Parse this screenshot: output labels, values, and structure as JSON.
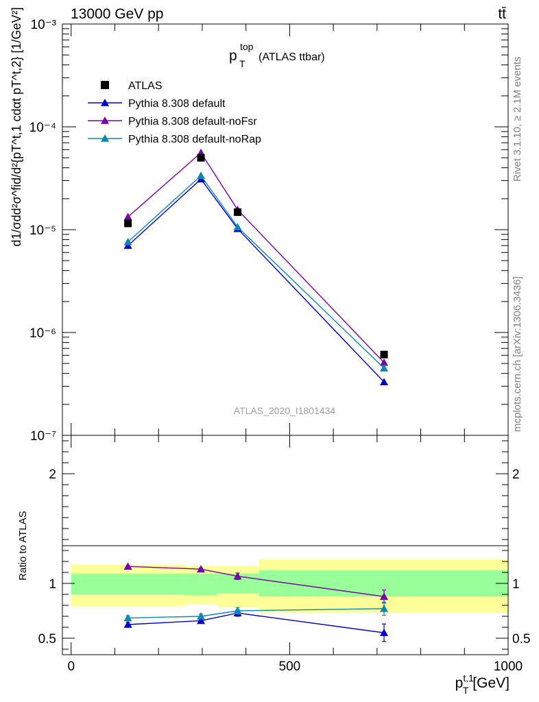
{
  "header": {
    "energy_label": "13000 GeV pp",
    "process_label": "tt̄"
  },
  "side_labels": {
    "rivet": "Rivet 3.1.10, ≥ 2.1M events",
    "mcplots": "mcplots.cern.ch [arXiv:1306.3436]"
  },
  "colors": {
    "data": "#000000",
    "default": "#0000cc",
    "noFsr": "#7a00a8",
    "noRap": "#0a88b0",
    "band_outer": "#ffff99",
    "band_inner": "#99ff99"
  },
  "chart_data": [
    {
      "type": "line",
      "title_main": "p",
      "title_sup": "top",
      "title_sub": "T",
      "title_suffix": "(ATLAS ttbar)",
      "analysis_label": "ATLAS_2020_I1801434",
      "ylabel": "d1/σdd²σ^fid/d²{pT^t,1 cdαt pT^t,2} [1/GeV²]",
      "yscale": "log",
      "ylim": [
        1e-07,
        0.001
      ],
      "xlim": [
        -20,
        1000
      ],
      "ytick_labels": [
        "10⁻³",
        "10⁻⁴",
        "10⁻⁵",
        "10⁻⁶",
        "10⁻⁷"
      ],
      "legend_position": "top-left",
      "data_series": {
        "name": "ATLAS",
        "x": [
          130,
          297,
          381,
          716
        ],
        "y": [
          1.15e-05,
          5e-05,
          1.48e-05,
          6.1e-07
        ]
      },
      "series": [
        {
          "name": "Pythia 8.308 default",
          "color_key": "default",
          "x": [
            130,
            297,
            381,
            716
          ],
          "y": [
            7e-06,
            3.1e-05,
            1.02e-05,
            3.3e-07
          ]
        },
        {
          "name": "Pythia 8.308 default-noFsr",
          "color_key": "noFsr",
          "x": [
            130,
            297,
            381,
            716
          ],
          "y": [
            1.33e-05,
            5.6e-05,
            1.56e-05,
            5.1e-07
          ]
        },
        {
          "name": "Pythia 8.308 default-noRap",
          "color_key": "noRap",
          "x": [
            130,
            297,
            381,
            716
          ],
          "y": [
            7.6e-06,
            3.35e-05,
            1.06e-05,
            4.5e-07
          ]
        }
      ]
    },
    {
      "type": "line",
      "ylabel": "Ratio to ATLAS",
      "xlabel": "p_T^{t,1} [GeV]",
      "ylim": [
        0.35,
        2.35
      ],
      "xlim": [
        -20,
        1000
      ],
      "yticks": [
        0.5,
        1,
        2
      ],
      "ytick_labels": [
        "0.5",
        "1",
        "2"
      ],
      "xticks": [
        0,
        500,
        1000
      ],
      "xtick_labels": [
        "0",
        "500",
        "1000"
      ],
      "bins": [
        [
          0,
          260
        ],
        [
          260,
          335
        ],
        [
          335,
          430
        ],
        [
          430,
          1000
        ]
      ],
      "band_outer": [
        [
          0.79,
          1.17
        ],
        [
          0.81,
          1.16
        ],
        [
          0.78,
          1.16
        ],
        [
          0.73,
          1.22
        ]
      ],
      "band_inner": [
        [
          0.9,
          1.09
        ],
        [
          0.89,
          1.09
        ],
        [
          0.91,
          1.09
        ],
        [
          0.88,
          1.12
        ]
      ],
      "series": [
        {
          "name": "Pythia 8.308 default",
          "color_key": "default",
          "x": [
            130,
            297,
            381,
            716
          ],
          "y": [
            0.625,
            0.66,
            0.73,
            0.55
          ],
          "err": [
            0.02,
            0.018,
            0.03,
            0.08
          ]
        },
        {
          "name": "Pythia 8.308 default-noFsr",
          "color_key": "noFsr",
          "x": [
            130,
            297,
            381,
            716
          ],
          "y": [
            1.155,
            1.13,
            1.065,
            0.88
          ],
          "err": [
            0.008,
            0.01,
            0.03,
            0.06
          ]
        },
        {
          "name": "Pythia 8.308 default-noRap",
          "color_key": "noRap",
          "x": [
            130,
            297,
            381,
            716
          ],
          "y": [
            0.685,
            0.7,
            0.75,
            0.77
          ],
          "err": [
            0.02,
            0.02,
            0.03,
            0.06
          ]
        }
      ]
    }
  ]
}
